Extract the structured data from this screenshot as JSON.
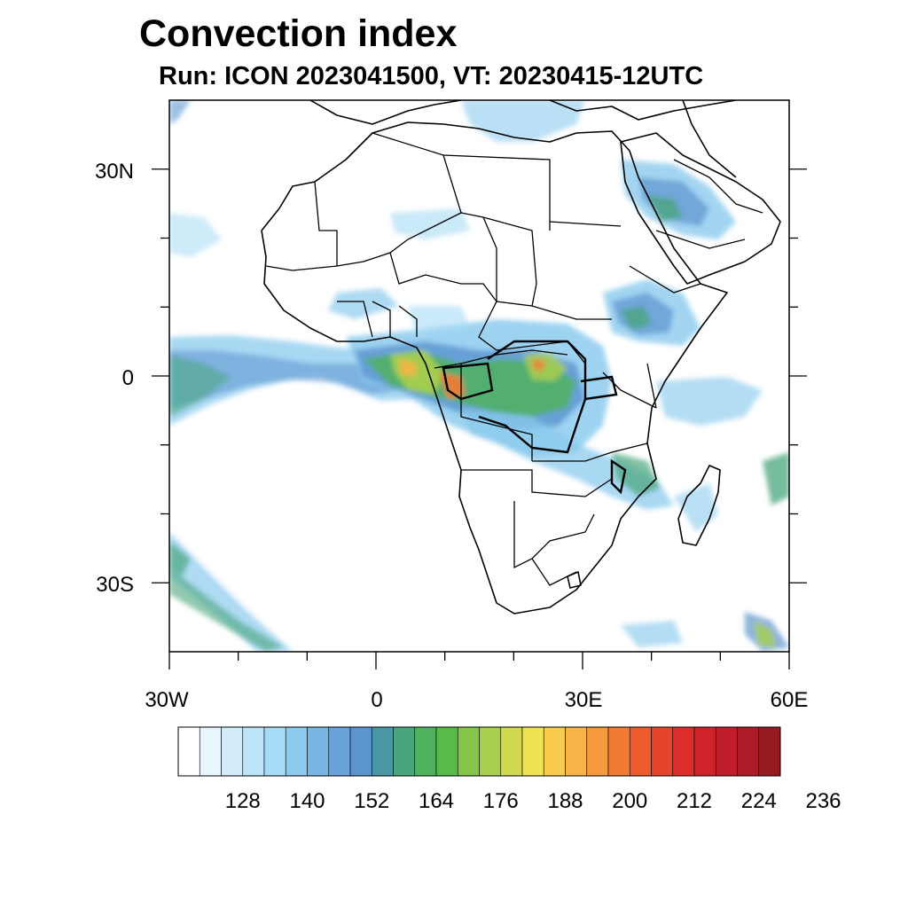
{
  "title": "Convection index",
  "subtitle": "Run: ICON 2023041500,  VT: 20230415-12UTC",
  "map": {
    "lon_range": [
      -30,
      60
    ],
    "lat_range": [
      -40,
      40
    ],
    "lon_ticks": [
      {
        "value": -30,
        "label": "30W"
      },
      {
        "value": 0,
        "label": "0"
      },
      {
        "value": 30,
        "label": "30E"
      },
      {
        "value": 60,
        "label": "60E"
      }
    ],
    "lat_ticks": [
      {
        "value": 30,
        "label": "30N"
      },
      {
        "value": 0,
        "label": "0"
      },
      {
        "value": -30,
        "label": "30S"
      }
    ],
    "minor_lon_ticks": [
      -20,
      -10,
      10,
      20,
      40,
      50
    ],
    "minor_lat_ticks": [
      20,
      10,
      -10,
      -20
    ]
  },
  "colorbar": {
    "colors": [
      "#ffffff",
      "#e8f5fc",
      "#d2ecfa",
      "#bde4f8",
      "#a6dbf5",
      "#8ccbee",
      "#79b6e3",
      "#6aa3da",
      "#5b94cf",
      "#4a98a6",
      "#4aa57c",
      "#4fb25e",
      "#58bb48",
      "#83c64a",
      "#a9cf4d",
      "#cfd84f",
      "#f0e352",
      "#f8cd4d",
      "#f6b446",
      "#f59a3d",
      "#f27b33",
      "#ed5c2d",
      "#e6432b",
      "#de2e2b",
      "#cf232c",
      "#c01e2c",
      "#ab1c26",
      "#961a22"
    ],
    "labels": [
      "128",
      "140",
      "152",
      "164",
      "176",
      "188",
      "200",
      "212",
      "224",
      "236"
    ]
  }
}
